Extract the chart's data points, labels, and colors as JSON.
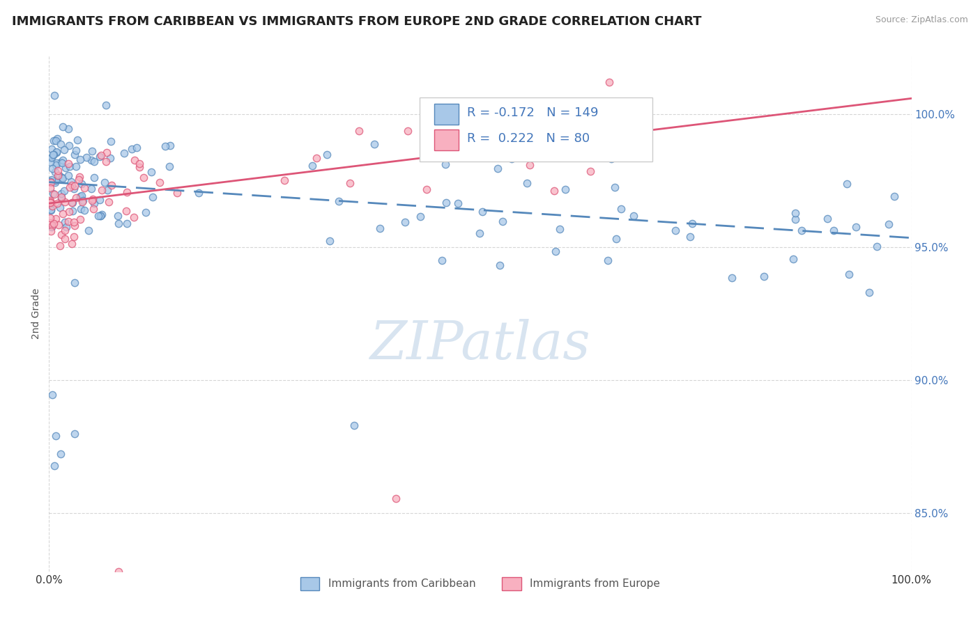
{
  "title": "IMMIGRANTS FROM CARIBBEAN VS IMMIGRANTS FROM EUROPE 2ND GRADE CORRELATION CHART",
  "source_text": "Source: ZipAtlas.com",
  "ylabel": "2nd Grade",
  "xlim": [
    0.0,
    1.0
  ],
  "ylim": [
    0.828,
    1.022
  ],
  "y_tick_values": [
    0.85,
    0.9,
    0.95,
    1.0
  ],
  "legend_R1": "-0.172",
  "legend_N1": "149",
  "legend_R2": "0.222",
  "legend_N2": "80",
  "series1_label": "Immigrants from Caribbean",
  "series2_label": "Immigrants from Europe",
  "series1_color": "#a8c8e8",
  "series2_color": "#f8b0c0",
  "trend1_color": "#5588bb",
  "trend2_color": "#dd5577",
  "watermark_color": "#d8e4f0",
  "background_color": "#ffffff",
  "title_fontsize": 13,
  "axis_label_fontsize": 10,
  "tick_fontsize": 11,
  "trend1_y_start": 0.9745,
  "trend1_y_end": 0.9535,
  "trend2_y_start": 0.9665,
  "trend2_y_end": 1.006
}
